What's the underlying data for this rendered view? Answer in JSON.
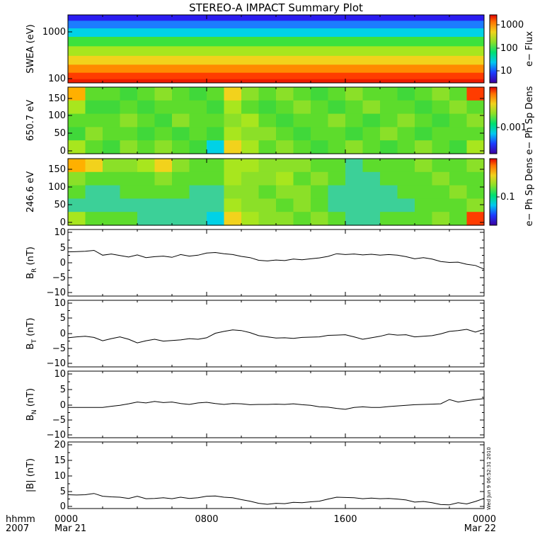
{
  "title": "STEREO-A IMPACT Summary Plot",
  "timestamp": "Wed Jun  9 06:52:31 2010",
  "time_axis": {
    "row1_label": "hhmm",
    "row2_label": "2007",
    "ticks": [
      {
        "hour": 0,
        "label": "0000",
        "date": "Mar 21"
      },
      {
        "hour": 8,
        "label": "0800",
        "date": ""
      },
      {
        "hour": 16,
        "label": "1600",
        "date": ""
      },
      {
        "hour": 24,
        "label": "0000",
        "date": "Mar 22"
      }
    ],
    "range_hours": [
      0,
      24
    ]
  },
  "spectrograms": [
    {
      "ylabel": "SWEA (eV)",
      "ytick_labels": [
        "1000",
        "100"
      ],
      "colorbar_label": "e− Flux",
      "colorbar_ticks": [
        "1000",
        "100",
        "10"
      ]
    },
    {
      "ylabel": "650.7 eV",
      "ytick_labels": [
        "150",
        "100",
        "50",
        "0"
      ],
      "colorbar_label": "e− Ph Sp Dens",
      "colorbar_ticks": [
        "0.001"
      ]
    },
    {
      "ylabel": "246.6 eV",
      "ytick_labels": [
        "150",
        "100",
        "50",
        "0"
      ],
      "colorbar_label": "e− Ph Sp Dens",
      "colorbar_ticks": [
        "0.1"
      ]
    }
  ],
  "line_panels": [
    {
      "ylabel_main": "B",
      "ylabel_sub": "R",
      "ylabel_unit": "(nT)",
      "ytick_labels": [
        "10",
        "5",
        "0",
        "−5",
        "−10"
      ]
    },
    {
      "ylabel_main": "B",
      "ylabel_sub": "T",
      "ylabel_unit": "(nT)",
      "ytick_labels": [
        "10",
        "5",
        "0",
        "−5",
        "−10"
      ]
    },
    {
      "ylabel_main": "B",
      "ylabel_sub": "N",
      "ylabel_unit": "(nT)",
      "ytick_labels": [
        "10",
        "5",
        "0",
        "−5",
        "−10"
      ]
    },
    {
      "ylabel_main": "|B|",
      "ylabel_sub": "",
      "ylabel_unit": "(nT)",
      "ytick_labels": [
        "20",
        "15",
        "10",
        "5",
        "0"
      ]
    }
  ],
  "chart_data": [
    {
      "type": "heatmap",
      "title": "STEREO-A IMPACT Summary Plot",
      "xlabel": "hhmm",
      "ylabel": "SWEA (eV)",
      "y_scale": "log",
      "ylim": [
        90,
        2000
      ],
      "colorbar": {
        "label": "e− Flux",
        "scale": "log",
        "range": [
          1,
          3000
        ],
        "ticks": [
          10,
          100,
          1000
        ]
      },
      "bands": [
        {
          "energy_ev": 1800,
          "color": "#2a1cf0"
        },
        {
          "energy_ev": 1300,
          "color": "#1c7cff"
        },
        {
          "energy_ev": 900,
          "color": "#00d2e6"
        },
        {
          "energy_ev": 600,
          "color": "#3ce23c"
        },
        {
          "energy_ev": 380,
          "color": "#a8e61e"
        },
        {
          "energy_ev": 250,
          "color": "#f2d21c"
        },
        {
          "energy_ev": 170,
          "color": "#ff8a00"
        },
        {
          "energy_ev": 120,
          "color": "#ff3c00"
        },
        {
          "energy_ev": 95,
          "color": "#ee1c00"
        }
      ]
    },
    {
      "type": "heatmap",
      "ylabel": "650.7 eV",
      "ylim": [
        0,
        180
      ],
      "colorbar": {
        "label": "e− Ph Sp Dens",
        "scale": "log",
        "ticks": [
          0.001
        ]
      },
      "x_hours": [
        0,
        1,
        2,
        3,
        4,
        5,
        6,
        7,
        8,
        9,
        10,
        11,
        12,
        13,
        14,
        15,
        16,
        17,
        18,
        19,
        20,
        21,
        22,
        23,
        24
      ],
      "columns": [
        [
          "#ffb000",
          "#a8e61e",
          "#5ddc2c",
          "#40d83a",
          "#a8e61e"
        ],
        [
          "#5ddc2c",
          "#40d83a",
          "#5ddc2c",
          "#8be028",
          "#5ddc2c"
        ],
        [
          "#5ddc2c",
          "#40d83a",
          "#5ddc2c",
          "#5ddc2c",
          "#40d83a"
        ],
        [
          "#40d83a",
          "#5ddc2c",
          "#8be028",
          "#5ddc2c",
          "#8be028"
        ],
        [
          "#5ddc2c",
          "#40d83a",
          "#5ddc2c",
          "#40d83a",
          "#5ddc2c"
        ],
        [
          "#8be028",
          "#5ddc2c",
          "#40d83a",
          "#5ddc2c",
          "#8be028"
        ],
        [
          "#5ddc2c",
          "#5ddc2c",
          "#8be028",
          "#40d83a",
          "#5ddc2c"
        ],
        [
          "#40d83a",
          "#5ddc2c",
          "#5ddc2c",
          "#5ddc2c",
          "#40d83a"
        ],
        [
          "#5ddc2c",
          "#40d83a",
          "#5ddc2c",
          "#40d83a",
          "#00d2e6"
        ],
        [
          "#f2d21c",
          "#a8e61e",
          "#8be028",
          "#a8e61e",
          "#f2d21c"
        ],
        [
          "#8be028",
          "#5ddc2c",
          "#a8e61e",
          "#8be028",
          "#a8e61e"
        ],
        [
          "#5ddc2c",
          "#40d83a",
          "#5ddc2c",
          "#8be028",
          "#5ddc2c"
        ],
        [
          "#8be028",
          "#5ddc2c",
          "#40d83a",
          "#5ddc2c",
          "#8be028"
        ],
        [
          "#5ddc2c",
          "#8be028",
          "#5ddc2c",
          "#40d83a",
          "#5ddc2c"
        ],
        [
          "#40d83a",
          "#5ddc2c",
          "#5ddc2c",
          "#5ddc2c",
          "#40d83a"
        ],
        [
          "#5ddc2c",
          "#40d83a",
          "#8be028",
          "#5ddc2c",
          "#5ddc2c"
        ],
        [
          "#8be028",
          "#5ddc2c",
          "#5ddc2c",
          "#40d83a",
          "#8be028"
        ],
        [
          "#5ddc2c",
          "#8be028",
          "#40d83a",
          "#5ddc2c",
          "#5ddc2c"
        ],
        [
          "#5ddc2c",
          "#5ddc2c",
          "#5ddc2c",
          "#8be028",
          "#40d83a"
        ],
        [
          "#40d83a",
          "#5ddc2c",
          "#8be028",
          "#5ddc2c",
          "#5ddc2c"
        ],
        [
          "#5ddc2c",
          "#40d83a",
          "#5ddc2c",
          "#40d83a",
          "#8be028"
        ],
        [
          "#8be028",
          "#5ddc2c",
          "#40d83a",
          "#5ddc2c",
          "#5ddc2c"
        ],
        [
          "#5ddc2c",
          "#8be028",
          "#5ddc2c",
          "#5ddc2c",
          "#40d83a"
        ],
        [
          "#ff3c00",
          "#5ddc2c",
          "#8be028",
          "#5ddc2c",
          "#a8e61e"
        ]
      ]
    },
    {
      "type": "heatmap",
      "ylabel": "246.6 eV",
      "ylim": [
        0,
        180
      ],
      "colorbar": {
        "label": "e− Ph Sp Dens",
        "scale": "log",
        "ticks": [
          0.1
        ]
      },
      "x_hours": [
        0,
        1,
        2,
        3,
        4,
        5,
        6,
        7,
        8,
        9,
        10,
        11,
        12,
        13,
        14,
        15,
        16,
        17,
        18,
        19,
        20,
        21,
        22,
        23,
        24
      ],
      "columns": [
        [
          "#ffb000",
          "#8be028",
          "#5ddc2c",
          "#3cd098",
          "#a8e61e"
        ],
        [
          "#f2d21c",
          "#5ddc2c",
          "#3cd098",
          "#3cd098",
          "#5ddc2c"
        ],
        [
          "#8be028",
          "#5ddc2c",
          "#3cd098",
          "#3cd098",
          "#5ddc2c"
        ],
        [
          "#8be028",
          "#5ddc2c",
          "#5ddc2c",
          "#3cd098",
          "#5ddc2c"
        ],
        [
          "#a8e61e",
          "#5ddc2c",
          "#5ddc2c",
          "#3cd098",
          "#3cd098"
        ],
        [
          "#f2d21c",
          "#8be028",
          "#5ddc2c",
          "#3cd098",
          "#3cd098"
        ],
        [
          "#8be028",
          "#5ddc2c",
          "#5ddc2c",
          "#3cd098",
          "#3cd098"
        ],
        [
          "#5ddc2c",
          "#5ddc2c",
          "#3cd098",
          "#3cd098",
          "#3cd098"
        ],
        [
          "#5ddc2c",
          "#5ddc2c",
          "#3cd098",
          "#3cd098",
          "#00d2e6"
        ],
        [
          "#a8e61e",
          "#a8e61e",
          "#8be028",
          "#a8e61e",
          "#f2d21c"
        ],
        [
          "#a8e61e",
          "#8be028",
          "#8be028",
          "#8be028",
          "#a8e61e"
        ],
        [
          "#8be028",
          "#8be028",
          "#5ddc2c",
          "#8be028",
          "#8be028"
        ],
        [
          "#8be028",
          "#a8e61e",
          "#8be028",
          "#5ddc2c",
          "#8be028"
        ],
        [
          "#8be028",
          "#5ddc2c",
          "#8be028",
          "#8be028",
          "#5ddc2c"
        ],
        [
          "#5ddc2c",
          "#8be028",
          "#5ddc2c",
          "#5ddc2c",
          "#8be028"
        ],
        [
          "#5ddc2c",
          "#5ddc2c",
          "#3cd098",
          "#3cd098",
          "#5ddc2c"
        ],
        [
          "#3cd098",
          "#3cd098",
          "#3cd098",
          "#3cd098",
          "#3cd098"
        ],
        [
          "#5ddc2c",
          "#3cd098",
          "#3cd098",
          "#3cd098",
          "#3cd098"
        ],
        [
          "#5ddc2c",
          "#5ddc2c",
          "#3cd098",
          "#3cd098",
          "#5ddc2c"
        ],
        [
          "#5ddc2c",
          "#5ddc2c",
          "#5ddc2c",
          "#3cd098",
          "#5ddc2c"
        ],
        [
          "#8be028",
          "#5ddc2c",
          "#5ddc2c",
          "#5ddc2c",
          "#5ddc2c"
        ],
        [
          "#5ddc2c",
          "#8be028",
          "#5ddc2c",
          "#5ddc2c",
          "#8be028"
        ],
        [
          "#5ddc2c",
          "#5ddc2c",
          "#8be028",
          "#5ddc2c",
          "#5ddc2c"
        ],
        [
          "#8be028",
          "#5ddc2c",
          "#5ddc2c",
          "#8be028",
          "#ff3c00"
        ]
      ]
    },
    {
      "type": "line",
      "ylabel": "B_R (nT)",
      "xlim": [
        0,
        24
      ],
      "ylim": [
        -10,
        10
      ],
      "x": [
        0,
        0.5,
        1,
        1.5,
        2,
        2.5,
        3,
        3.5,
        4,
        4.5,
        5,
        5.5,
        6,
        6.5,
        7,
        7.5,
        8,
        8.5,
        9,
        9.5,
        10,
        10.5,
        11,
        11.5,
        12,
        12.5,
        13,
        13.5,
        14,
        14.5,
        15,
        15.5,
        16,
        16.5,
        17,
        17.5,
        18,
        18.5,
        19,
        19.5,
        20,
        20.5,
        21,
        21.5,
        22,
        22.5,
        23,
        23.5,
        24
      ],
      "y": [
        3.5,
        3.6,
        3.7,
        4.0,
        2.4,
        2.8,
        2.3,
        1.8,
        2.5,
        1.6,
        1.9,
        2.1,
        1.7,
        2.6,
        2.1,
        2.4,
        3.1,
        3.3,
        2.9,
        2.6,
        2.0,
        1.6,
        0.7,
        0.5,
        0.8,
        0.6,
        1.1,
        0.9,
        1.2,
        1.5,
        2.0,
        2.9,
        2.6,
        2.8,
        2.5,
        2.7,
        2.4,
        2.6,
        2.4,
        1.9,
        1.2,
        1.6,
        1.1,
        0.3,
        0.0,
        0.1,
        -0.6,
        -1.0,
        -2.2
      ]
    },
    {
      "type": "line",
      "ylabel": "B_T (nT)",
      "xlim": [
        0,
        24
      ],
      "ylim": [
        -10,
        10
      ],
      "x": [
        0,
        0.5,
        1,
        1.5,
        2,
        2.5,
        3,
        3.5,
        4,
        4.5,
        5,
        5.5,
        6,
        6.5,
        7,
        7.5,
        8,
        8.5,
        9,
        9.5,
        10,
        10.5,
        11,
        11.5,
        12,
        12.5,
        13,
        13.5,
        14,
        14.5,
        15,
        15.5,
        16,
        16.5,
        17,
        17.5,
        18,
        18.5,
        19,
        19.5,
        20,
        20.5,
        21,
        21.5,
        22,
        22.5,
        23,
        23.5,
        24
      ],
      "y": [
        -1.5,
        -1.2,
        -1.0,
        -1.4,
        -2.5,
        -1.8,
        -1.2,
        -2.0,
        -3.2,
        -2.5,
        -2.0,
        -2.6,
        -2.4,
        -2.2,
        -1.8,
        -2.0,
        -1.5,
        0.0,
        0.6,
        1.1,
        0.9,
        0.2,
        -0.8,
        -1.2,
        -1.6,
        -1.5,
        -1.7,
        -1.4,
        -1.3,
        -1.2,
        -0.7,
        -0.6,
        -0.5,
        -1.2,
        -2.0,
        -1.5,
        -1.0,
        -0.3,
        -0.6,
        -0.5,
        -1.2,
        -1.0,
        -0.8,
        -0.2,
        0.6,
        0.9,
        1.3,
        0.4,
        1.3
      ]
    },
    {
      "type": "line",
      "ylabel": "B_N (nT)",
      "xlim": [
        0,
        24
      ],
      "ylim": [
        -10,
        10
      ],
      "x": [
        0,
        0.5,
        1,
        1.5,
        2,
        2.5,
        3,
        3.5,
        4,
        4.5,
        5,
        5.5,
        6,
        6.5,
        7,
        7.5,
        8,
        8.5,
        9,
        9.5,
        10,
        10.5,
        11,
        11.5,
        12,
        12.5,
        13,
        13.5,
        14,
        14.5,
        15,
        15.5,
        16,
        16.5,
        17,
        17.5,
        18,
        18.5,
        19,
        19.5,
        20,
        20.5,
        21,
        21.5,
        22,
        22.5,
        23,
        23.5,
        24
      ],
      "y": [
        -1.0,
        -1.0,
        -1.0,
        -1.0,
        -1.0,
        -0.6,
        -0.3,
        0.2,
        0.8,
        0.5,
        1.0,
        0.6,
        0.8,
        0.3,
        0.0,
        0.5,
        0.7,
        0.3,
        0.0,
        0.3,
        0.2,
        -0.1,
        0.0,
        0.0,
        0.1,
        0.0,
        0.2,
        -0.1,
        -0.3,
        -0.8,
        -0.9,
        -1.3,
        -1.6,
        -1.0,
        -0.8,
        -1.0,
        -1.0,
        -0.7,
        -0.5,
        -0.3,
        -0.1,
        0.0,
        0.1,
        0.2,
        1.6,
        0.8,
        1.2,
        1.6,
        1.9
      ]
    },
    {
      "type": "line",
      "ylabel": "|B| (nT)",
      "xlim": [
        0,
        24
      ],
      "ylim": [
        0,
        20
      ],
      "x": [
        0,
        0.5,
        1,
        1.5,
        2,
        2.5,
        3,
        3.5,
        4,
        4.5,
        5,
        5.5,
        6,
        6.5,
        7,
        7.5,
        8,
        8.5,
        9,
        9.5,
        10,
        10.5,
        11,
        11.5,
        12,
        12.5,
        13,
        13.5,
        14,
        14.5,
        15,
        15.5,
        16,
        16.5,
        17,
        17.5,
        18,
        18.5,
        19,
        19.5,
        20,
        20.5,
        21,
        21.5,
        22,
        22.5,
        23,
        23.5,
        24
      ],
      "y": [
        3.8,
        3.7,
        3.8,
        4.2,
        3.3,
        3.1,
        3.0,
        2.6,
        3.3,
        2.5,
        2.6,
        2.8,
        2.5,
        3.0,
        2.6,
        2.8,
        3.3,
        3.4,
        3.0,
        2.8,
        2.2,
        1.7,
        1.0,
        0.7,
        1.0,
        0.9,
        1.3,
        1.2,
        1.5,
        1.7,
        2.4,
        3.0,
        2.9,
        2.8,
        2.5,
        2.7,
        2.5,
        2.6,
        2.4,
        2.1,
        1.4,
        1.6,
        1.2,
        0.6,
        0.5,
        1.2,
        0.8,
        1.6,
        2.6
      ]
    }
  ]
}
